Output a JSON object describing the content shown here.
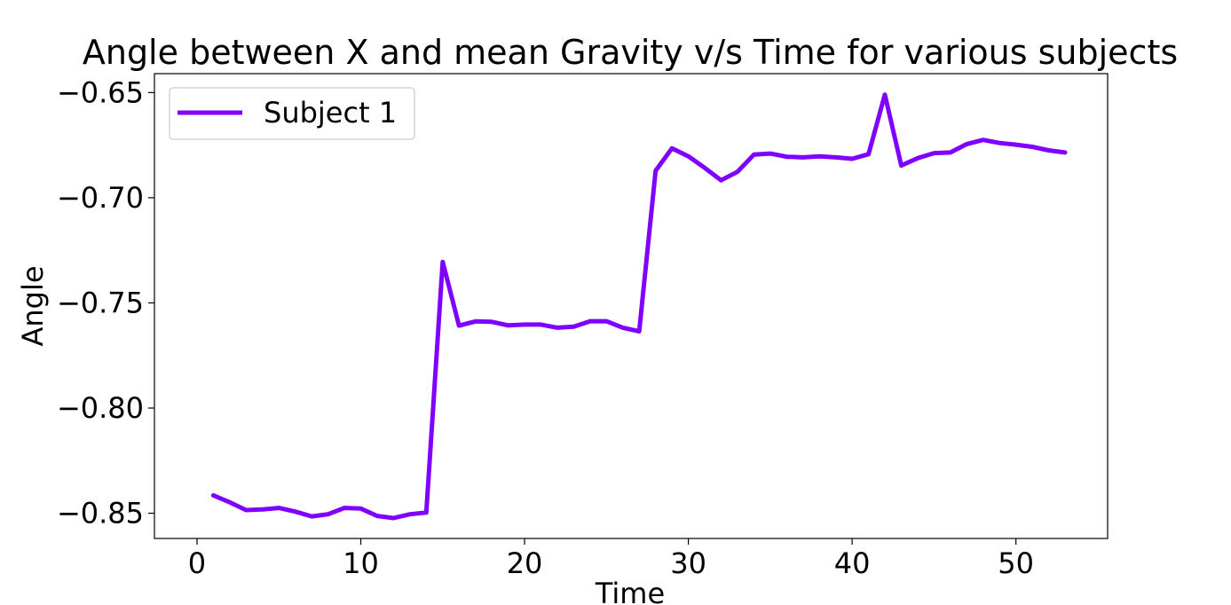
{
  "chart_data": {
    "type": "line",
    "title": "Angle between X and mean Gravity v/s Time for various subjects",
    "xlabel": "Time",
    "ylabel": "Angle",
    "xlim": [
      -2.6,
      55.6
    ],
    "ylim": [
      -0.862,
      -0.641
    ],
    "x_ticks": [
      0,
      10,
      20,
      30,
      40,
      50
    ],
    "y_ticks": [
      -0.85,
      -0.8,
      -0.75,
      -0.7,
      -0.65
    ],
    "y_tick_labels": [
      "−0.85",
      "−0.80",
      "−0.75",
      "−0.70",
      "−0.65"
    ],
    "grid": false,
    "legend": "top-left",
    "series": [
      {
        "name": "Subject 1",
        "color": "#7f00ff",
        "x": [
          1,
          2,
          3,
          4,
          5,
          6,
          7,
          8,
          9,
          10,
          11,
          12,
          13,
          14,
          15,
          16,
          17,
          18,
          19,
          20,
          21,
          22,
          23,
          24,
          25,
          26,
          27,
          28,
          29,
          30,
          31,
          32,
          33,
          34,
          35,
          36,
          37,
          38,
          39,
          40,
          41,
          42,
          43,
          44,
          45,
          46,
          47,
          48,
          49,
          50,
          51,
          52,
          53
        ],
        "y": [
          -0.8415,
          -0.8448,
          -0.8485,
          -0.8482,
          -0.8475,
          -0.8492,
          -0.8515,
          -0.8505,
          -0.8475,
          -0.8478,
          -0.8513,
          -0.8523,
          -0.8505,
          -0.8497,
          -0.7305,
          -0.7608,
          -0.7588,
          -0.759,
          -0.7607,
          -0.7603,
          -0.7603,
          -0.7618,
          -0.7613,
          -0.7587,
          -0.7587,
          -0.7618,
          -0.7635,
          -0.6872,
          -0.6765,
          -0.6803,
          -0.6858,
          -0.6917,
          -0.6877,
          -0.6795,
          -0.679,
          -0.6805,
          -0.6808,
          -0.6803,
          -0.6808,
          -0.6815,
          -0.6793,
          -0.651,
          -0.6847,
          -0.6812,
          -0.6788,
          -0.6785,
          -0.6745,
          -0.6725,
          -0.674,
          -0.6748,
          -0.6758,
          -0.6775,
          -0.6785
        ]
      }
    ]
  }
}
